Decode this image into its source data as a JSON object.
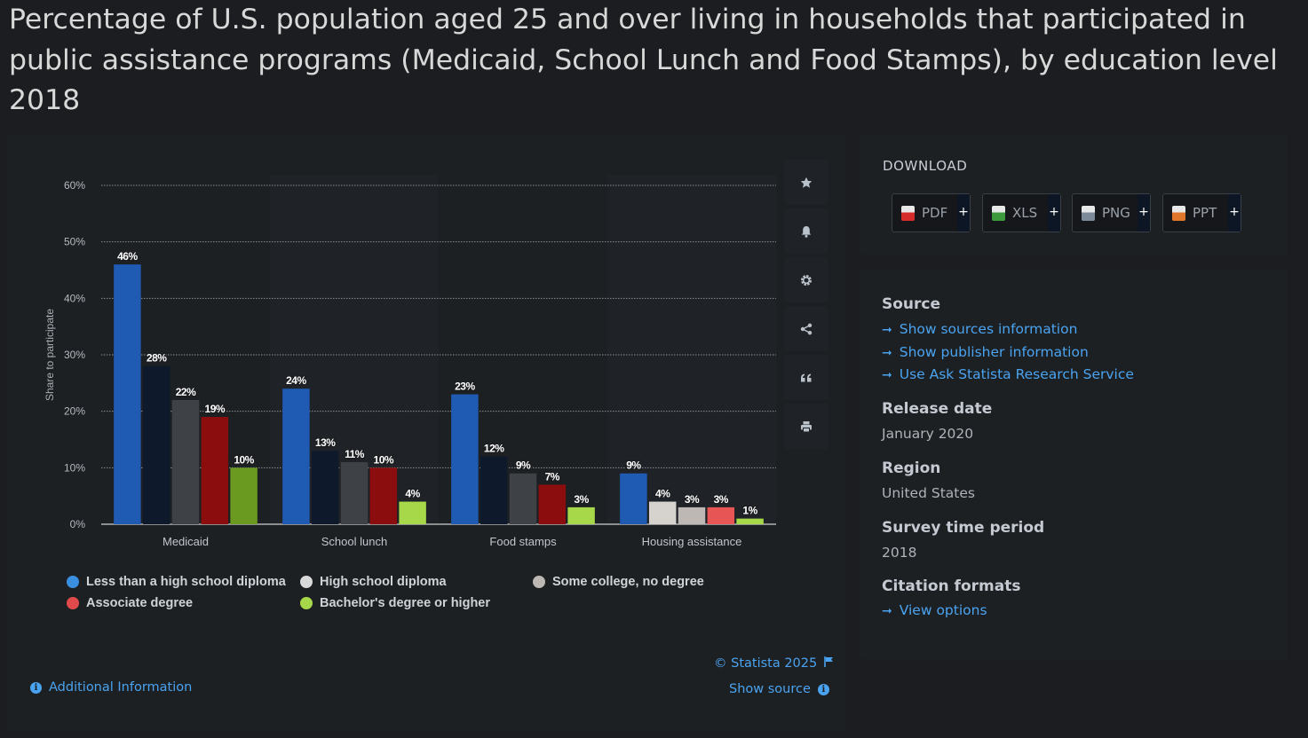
{
  "title": "Percentage of U.S. population aged 25 and over living in households that participated in public assistance programs (Medicaid, School Lunch and Food Stamps), by education level 2018",
  "download": {
    "heading": "DOWNLOAD",
    "buttons": [
      {
        "label": "PDF",
        "plus": "+",
        "color": "#d62b2b"
      },
      {
        "label": "XLS",
        "plus": "+",
        "color": "#3c9a3c"
      },
      {
        "label": "PNG",
        "plus": "+",
        "color": "#7d8a99"
      },
      {
        "label": "PPT",
        "plus": "+",
        "color": "#e0752c"
      }
    ]
  },
  "info": {
    "source_heading": "Source",
    "source_links": [
      "Show sources information",
      "Show publisher information",
      "Use Ask Statista Research Service"
    ],
    "release_heading": "Release date",
    "release_value": "January 2020",
    "region_heading": "Region",
    "region_value": "United States",
    "period_heading": "Survey time period",
    "period_value": "2018",
    "citation_heading": "Citation formats",
    "citation_link": "View options"
  },
  "toolbar": [
    "star-icon",
    "bell-icon",
    "gear-icon",
    "share-icon",
    "quote-icon",
    "print-icon"
  ],
  "footer": {
    "copyright": "© Statista 2025",
    "show_source": "Show source",
    "additional_info": "Additional Information"
  },
  "chart_data": {
    "type": "bar",
    "ylabel": "Share to participate",
    "xlabel": "",
    "ylim": [
      0,
      60
    ],
    "yticks": [
      "0%",
      "10%",
      "20%",
      "30%",
      "40%",
      "50%",
      "60%"
    ],
    "ytick_values": [
      0,
      10,
      20,
      30,
      40,
      50,
      60
    ],
    "grid": true,
    "categories": [
      "Medicaid",
      "School lunch",
      "Food stamps",
      "Housing assistance"
    ],
    "series": [
      {
        "name": "Less than a high school diploma",
        "values": [
          46,
          24,
          23,
          9
        ],
        "labels": [
          "46%",
          "24%",
          "23%",
          "9%"
        ],
        "color": "#1f5bb3",
        "legend_color": "#3a8fe0"
      },
      {
        "name": "High school diploma",
        "values": [
          28,
          13,
          12,
          4
        ],
        "labels": [
          "28%",
          "13%",
          "12%",
          "4%"
        ],
        "color": "#0e1a2b",
        "legend_color": "#d9d9d9"
      },
      {
        "name": "Some college, no degree",
        "values": [
          22,
          11,
          9,
          3
        ],
        "labels": [
          "22%",
          "11%",
          "9%",
          "3%"
        ],
        "color": "#3e4247",
        "legend_color": "#bdb8b3"
      },
      {
        "name": "Associate degree",
        "values": [
          19,
          10,
          7,
          3
        ],
        "labels": [
          "19%",
          "10%",
          "7%",
          "3%"
        ],
        "color": "#8c0d0d",
        "legend_color": "#e04a4a"
      },
      {
        "name": "Bachelor's degree or higher",
        "values": [
          10,
          4,
          3,
          1
        ],
        "labels": [
          "10%",
          "4%",
          "3%",
          "1%"
        ],
        "color": "#6a9a1f",
        "legend_color": "#a6d84a"
      }
    ],
    "bar_overrides": {
      "1-3": "#d6d2ce",
      "2-3": "#bdb8b3",
      "3-3": "#e85555",
      "4-1": "#a6d84a",
      "4-2": "#a6d84a",
      "4-3": "#a6d84a"
    },
    "legend_position": "bottom-left"
  }
}
